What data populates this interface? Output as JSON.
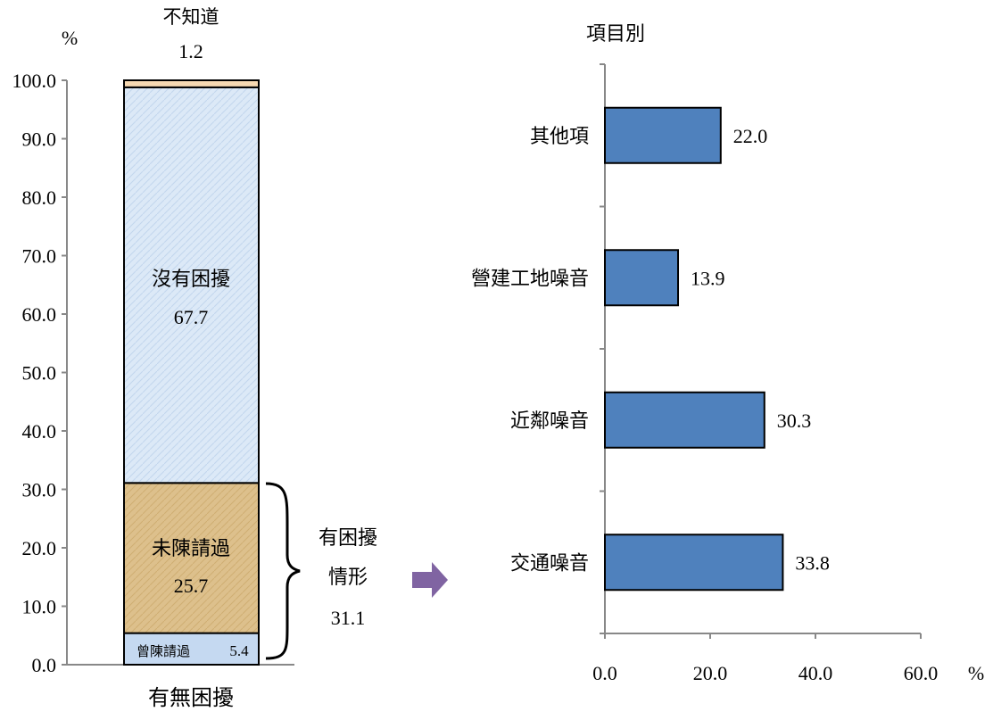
{
  "chart_data": [
    {
      "type": "stacked-bar",
      "y_unit": "%",
      "xlabel": "有無困擾",
      "ylim": [
        0,
        100
      ],
      "yticks": [
        "0.0",
        "10.0",
        "20.0",
        "30.0",
        "40.0",
        "50.0",
        "60.0",
        "70.0",
        "80.0",
        "90.0",
        "100.0"
      ],
      "segments": [
        {
          "name": "曾陳請過",
          "value": 5.4,
          "value_label": "5.4",
          "color": "#c5d9f1"
        },
        {
          "name": "未陳請過",
          "value": 25.7,
          "value_label": "25.7",
          "color": "#ddc08c"
        },
        {
          "name": "沒有困擾",
          "value": 67.7,
          "value_label": "67.7",
          "color": "#dce9f7"
        },
        {
          "name": "不知道",
          "value": 1.2,
          "value_label": "1.2",
          "color": "#f7d9b2"
        }
      ],
      "bracket": {
        "line1": "有困擾",
        "line2": "情形",
        "value": 31.1,
        "value_label": "31.1"
      }
    },
    {
      "type": "bar",
      "orientation": "horizontal",
      "title": "項目別",
      "x_unit": "%",
      "xlim": [
        0,
        60
      ],
      "xticks": [
        "0.0",
        "20.0",
        "40.0",
        "60.0"
      ],
      "categories": [
        "其他項",
        "營建工地噪音",
        "近鄰噪音",
        "交通噪音"
      ],
      "values": [
        22.0,
        13.9,
        30.3,
        33.8
      ],
      "value_labels": [
        "22.0",
        "13.9",
        "30.3",
        "33.8"
      ],
      "bar_color": "#4f81bd"
    }
  ],
  "colors": {
    "arrow": "#8064a2",
    "axis": "#888888"
  }
}
